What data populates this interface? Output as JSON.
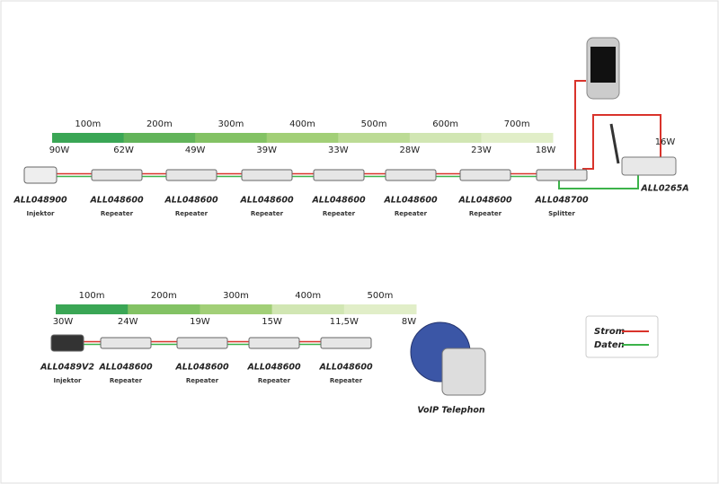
{
  "top_chain": {
    "distances": [
      "100m",
      "200m",
      "300m",
      "400m",
      "500m",
      "600m",
      "700m"
    ],
    "power": [
      "90W",
      "62W",
      "49W",
      "39W",
      "33W",
      "28W",
      "23W",
      "18W"
    ],
    "devices": [
      {
        "model": "ALL048900",
        "role": "Injektor"
      },
      {
        "model": "ALL048600",
        "role": "Repeater"
      },
      {
        "model": "ALL048600",
        "role": "Repeater"
      },
      {
        "model": "ALL048600",
        "role": "Repeater"
      },
      {
        "model": "ALL048600",
        "role": "Repeater"
      },
      {
        "model": "ALL048600",
        "role": "Repeater"
      },
      {
        "model": "ALL048600",
        "role": "Repeater"
      },
      {
        "model": "ALL048700",
        "role": "Splitter"
      }
    ],
    "camera": {
      "model": "ALL0265A",
      "power": "16W"
    }
  },
  "bottom_chain": {
    "distances": [
      "100m",
      "200m",
      "300m",
      "400m",
      "500m"
    ],
    "power": [
      "30W",
      "24W",
      "19W",
      "15W",
      "11,5W",
      "8W"
    ],
    "devices": [
      {
        "model": "ALL0489V2",
        "role": "Injektor"
      },
      {
        "model": "ALL048600",
        "role": "Repeater"
      },
      {
        "model": "ALL048600",
        "role": "Repeater"
      },
      {
        "model": "ALL048600",
        "role": "Repeater"
      },
      {
        "model": "ALL048600",
        "role": "Repeater"
      }
    ],
    "phone": "VoIP Telephon"
  },
  "legend": {
    "strom": "Strom",
    "daten": "Daten"
  }
}
